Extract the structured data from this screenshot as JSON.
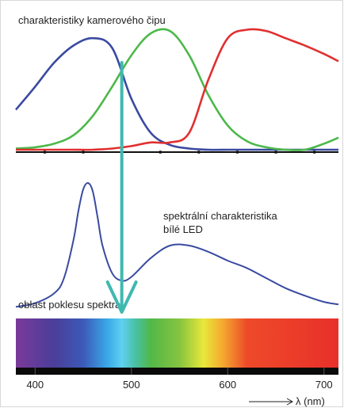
{
  "chart_data": [
    {
      "type": "line",
      "title": "charakteristiky kamerového čipu",
      "x_unit_label": "λ (nm)",
      "xlim": [
        380,
        715
      ],
      "ylim": [
        0,
        1
      ],
      "series": [
        {
          "color": "#3a4aa0",
          "x": [
            380,
            400,
            420,
            440,
            460,
            480,
            500,
            520,
            540,
            560,
            580,
            600,
            620,
            640,
            660,
            680,
            700,
            715
          ],
          "y": [
            0.33,
            0.52,
            0.72,
            0.86,
            0.92,
            0.84,
            0.42,
            0.14,
            0.04,
            0.01,
            0.0,
            0.0,
            0.0,
            0.0,
            0.0,
            0.0,
            0.0,
            0.0
          ]
        },
        {
          "color": "#4cb84a",
          "x": [
            380,
            400,
            420,
            440,
            460,
            480,
            500,
            520,
            540,
            560,
            580,
            600,
            620,
            640,
            660,
            680,
            700,
            715
          ],
          "y": [
            0.01,
            0.02,
            0.05,
            0.12,
            0.28,
            0.52,
            0.78,
            0.96,
            0.98,
            0.78,
            0.45,
            0.2,
            0.07,
            0.02,
            0.0,
            0.0,
            0.05,
            0.1
          ]
        },
        {
          "color": "#e03030",
          "x": [
            380,
            400,
            420,
            440,
            460,
            480,
            500,
            520,
            540,
            560,
            580,
            600,
            620,
            640,
            660,
            680,
            700,
            715
          ],
          "y": [
            0.0,
            0.0,
            0.0,
            0.0,
            0.0,
            0.01,
            0.03,
            0.06,
            0.06,
            0.14,
            0.58,
            0.92,
            0.99,
            0.98,
            0.92,
            0.86,
            0.79,
            0.73
          ]
        }
      ]
    },
    {
      "type": "line",
      "annotation": "spektrální charakteristika\nbílé LED",
      "dip_label": "oblast poklesu spektra",
      "dip_wavelength": 490,
      "xlim": [
        380,
        715
      ],
      "ylim": [
        0,
        1
      ],
      "series": [
        {
          "color": "#3a4aa0",
          "x": [
            380,
            400,
            420,
            430,
            440,
            445,
            450,
            455,
            460,
            465,
            470,
            480,
            490,
            500,
            520,
            540,
            560,
            580,
            600,
            620,
            640,
            660,
            680,
            700,
            715
          ],
          "y": [
            0.01,
            0.04,
            0.12,
            0.24,
            0.55,
            0.78,
            0.95,
            1.0,
            0.93,
            0.72,
            0.5,
            0.28,
            0.22,
            0.25,
            0.4,
            0.5,
            0.5,
            0.45,
            0.38,
            0.32,
            0.24,
            0.16,
            0.1,
            0.05,
            0.03
          ]
        }
      ]
    }
  ],
  "spectrum_bar": {
    "stops": [
      {
        "nm": 380,
        "color": "#7a3a9a"
      },
      {
        "nm": 420,
        "color": "#4a3e9a"
      },
      {
        "nm": 450,
        "color": "#3c5ab8"
      },
      {
        "nm": 475,
        "color": "#3aa8e8"
      },
      {
        "nm": 490,
        "color": "#5fd0f0"
      },
      {
        "nm": 505,
        "color": "#48c0a0"
      },
      {
        "nm": 520,
        "color": "#52b848"
      },
      {
        "nm": 550,
        "color": "#86c440"
      },
      {
        "nm": 575,
        "color": "#e8e83a"
      },
      {
        "nm": 595,
        "color": "#f4a830"
      },
      {
        "nm": 620,
        "color": "#ee4a2a"
      },
      {
        "nm": 715,
        "color": "#e8302a"
      }
    ],
    "ticks": [
      400,
      500,
      600,
      700
    ]
  },
  "arrow_color": "#3fb9b0"
}
